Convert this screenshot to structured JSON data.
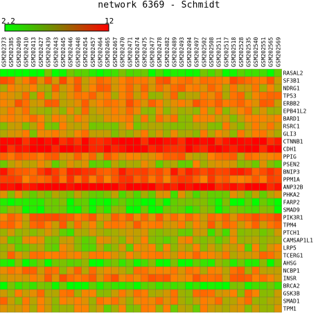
{
  "chart_data": {
    "type": "heatmap",
    "title": "network 6369 - Schmidt",
    "colorbar": {
      "min_label": "2.2",
      "max_label": "12",
      "min": 2.2,
      "max": 12,
      "low_color": "#00ff00",
      "mid_color": "#808000",
      "high_color": "#ff0000"
    },
    "columns": [
      "GSM202373",
      "GSM202385",
      "GSM202409",
      "GSM202410",
      "GSM202413",
      "GSM202427",
      "GSM202439",
      "GSM202443",
      "GSM202445",
      "GSM202446",
      "GSM202448",
      "GSM202454",
      "GSM202457",
      "GSM202464",
      "GSM202465",
      "GSM202467",
      "GSM202470",
      "GSM202471",
      "GSM202474",
      "GSM202475",
      "GSM202477",
      "GSM202478",
      "GSM202482",
      "GSM202489",
      "GSM202493",
      "GSM202494",
      "GSM202497",
      "GSM202502",
      "GSM202508",
      "GSM202511",
      "GSM202517",
      "GSM202518",
      "GSM202528",
      "GSM202535",
      "GSM202540",
      "GSM202551",
      "GSM202565",
      "GSM202569"
    ],
    "rows": [
      "RASAL2",
      "SF3B1",
      "NDRG1",
      "TP53",
      "ERBB2",
      "EPB41L2",
      "BARD1",
      "RSRC1",
      "GLI3",
      "CTNNB1",
      "CDH1",
      "PPIG",
      "PSEN2",
      "BNIP3",
      "PPM1A",
      "ANP32B",
      "PHKA2",
      "FARP2",
      "SMAD9",
      "PIK3R1",
      "TPM4",
      "PTCH1",
      "CAMSAP1L1",
      "LRP5",
      "TCERG1",
      "AHSG",
      "NCBP1",
      "INSR",
      "BRCA2",
      "GSK3B",
      "SMAD1",
      "TPM1"
    ],
    "row_levels": [
      3.0,
      7.6,
      7.0,
      6.6,
      7.4,
      6.4,
      6.4,
      5.9,
      6.2,
      11.6,
      11.8,
      7.2,
      5.4,
      9.6,
      8.6,
      11.8,
      5.0,
      3.1,
      3.5,
      7.6,
      7.0,
      5.0,
      5.6,
      5.4,
      6.8,
      3.5,
      6.7,
      7.6,
      3.1,
      6.4,
      6.6,
      5.7
    ]
  }
}
